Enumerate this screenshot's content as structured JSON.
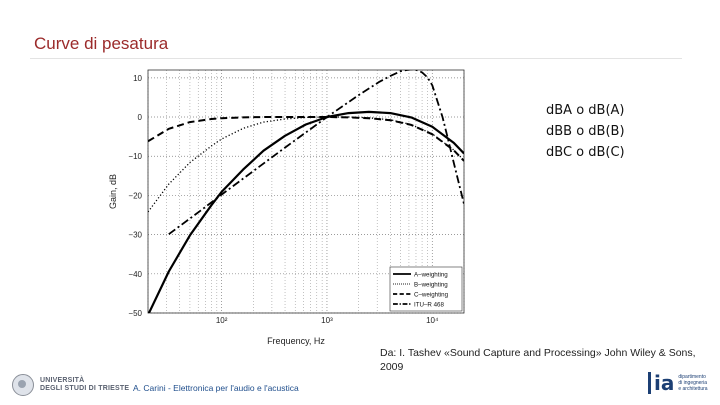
{
  "slide": {
    "title": "Curve di pesatura",
    "notes": [
      "dBA o dB(A)",
      "dBB o dB(B)",
      "dBC o dB(C)"
    ],
    "source": "Da: I. Tashev «Sound Capture and Processing» John Wiley & Sons, 2009",
    "footer_author": "A. Carini - Elettronica per l'audio e l'acustica",
    "footer_university": [
      "UNIVERSITÀ",
      "DEGLI STUDI DI TRIESTE"
    ],
    "footer_logo": "ia",
    "footer_logo_sub": [
      "dipartimento",
      "di ingegneria",
      "e architettura"
    ]
  },
  "chart_data": {
    "type": "line",
    "xscale": "log",
    "xlim": [
      20,
      20000
    ],
    "ylim": [
      -50,
      12
    ],
    "xlabel": "Frequency, Hz",
    "ylabel": "Gain, dB",
    "xticks": [
      100,
      1000,
      10000
    ],
    "xticklabels": [
      "10²",
      "10³",
      "10⁴"
    ],
    "yticks": [
      10,
      0,
      -10,
      -20,
      -30,
      -40,
      -50
    ],
    "yticklabels": [
      "10",
      "0",
      "−10",
      "−20",
      "−30",
      "−40",
      "−50"
    ],
    "grid": true,
    "legend_position": "bottom-right",
    "series": [
      {
        "name": "A–weighting",
        "style": "solid",
        "x": [
          20,
          31.5,
          50,
          80,
          100,
          160,
          250,
          400,
          630,
          1000,
          1600,
          2500,
          4000,
          6300,
          10000,
          16000,
          20000
        ],
        "y": [
          -50.5,
          -39.4,
          -30.2,
          -22.5,
          -19.1,
          -13.4,
          -8.6,
          -4.8,
          -1.9,
          0,
          1.0,
          1.3,
          1.0,
          -0.1,
          -2.5,
          -6.6,
          -9.3
        ]
      },
      {
        "name": "B–weighting",
        "style": "dotted",
        "x": [
          20,
          31.5,
          50,
          80,
          100,
          160,
          250,
          400,
          630,
          1000,
          1600,
          2500,
          4000,
          6300,
          10000,
          16000,
          20000
        ],
        "y": [
          -24.2,
          -17.1,
          -11.6,
          -7.4,
          -5.6,
          -2.9,
          -1.3,
          -0.5,
          -0.1,
          0,
          0,
          -0.2,
          -0.7,
          -1.9,
          -4.3,
          -8.4,
          -11.1
        ]
      },
      {
        "name": "C–weighting",
        "style": "dashed",
        "x": [
          20,
          31.5,
          50,
          80,
          100,
          160,
          250,
          400,
          630,
          1000,
          1600,
          2500,
          4000,
          6300,
          10000,
          16000,
          20000
        ],
        "y": [
          -6.2,
          -3.0,
          -1.3,
          -0.5,
          -0.3,
          -0.1,
          0,
          0,
          0,
          0,
          -0.1,
          -0.3,
          -0.8,
          -2.0,
          -4.4,
          -8.5,
          -11.2
        ]
      },
      {
        "name": "ITU–R 468",
        "style": "dashdot",
        "x": [
          31.5,
          63,
          100,
          200,
          400,
          800,
          1000,
          2000,
          3150,
          4000,
          5000,
          6300,
          7100,
          8000,
          9000,
          10000,
          12500,
          14000,
          16000,
          20000
        ],
        "y": [
          -29.9,
          -23.9,
          -19.8,
          -13.8,
          -7.8,
          -1.9,
          0,
          5.6,
          9.0,
          10.5,
          11.7,
          12.2,
          12.0,
          11.4,
          10.1,
          8.1,
          0,
          -5.3,
          -11.7,
          -22.2
        ]
      }
    ]
  }
}
